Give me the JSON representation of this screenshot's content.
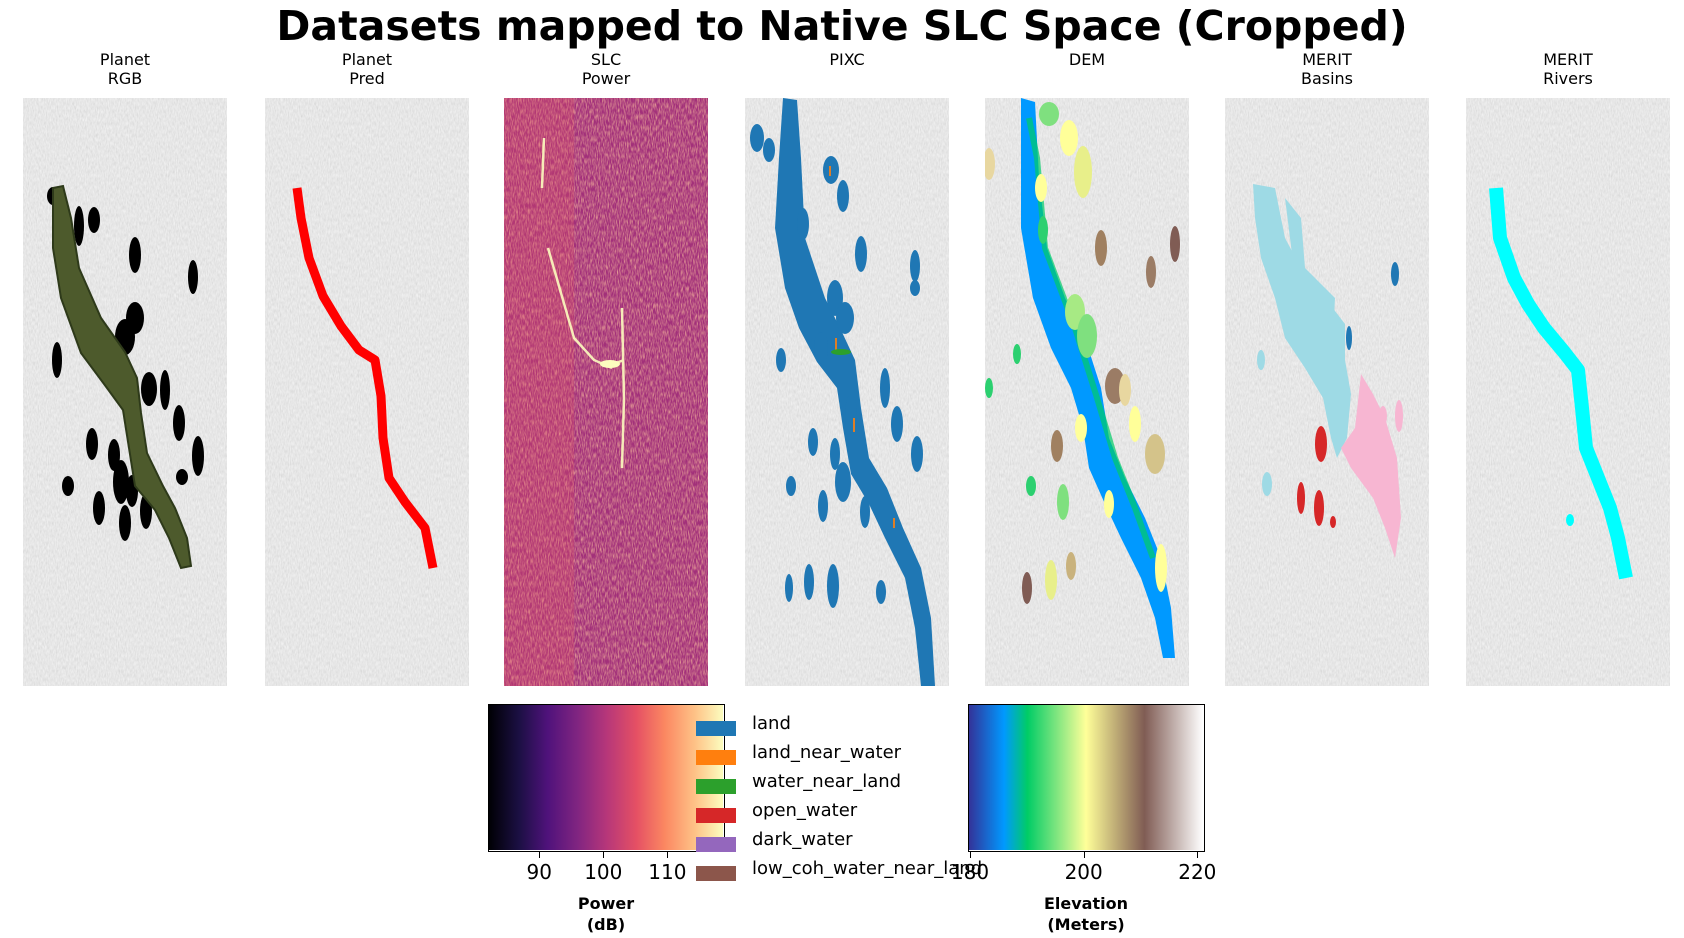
{
  "figure": {
    "title": "Datasets mapped to Native SLC Space (Cropped)"
  },
  "panels": [
    {
      "title": [
        "Planet",
        "RGB"
      ]
    },
    {
      "title": [
        "Planet",
        "Pred"
      ]
    },
    {
      "title": [
        "SLC",
        "Power"
      ]
    },
    {
      "title": [
        "",
        "PIXC"
      ]
    },
    {
      "title": [
        "",
        "DEM"
      ]
    },
    {
      "title": [
        "MERIT",
        "Basins"
      ]
    },
    {
      "title": [
        "MERIT",
        "Rivers"
      ]
    }
  ],
  "colors": {
    "background_sar": "#cfcfcf",
    "planet_river": "#4d5a2c",
    "planet_lakes": "#000000",
    "planet_pred": "#ff0000",
    "pixc_land": "#1f77b4",
    "pixc_land_near_water": "#ff7f0e",
    "pixc_water_near_land": "#2ca02c",
    "merit_basin_a": "#9edae5",
    "merit_basin_b": "#d62728",
    "merit_basin_c": "#f7b6d2",
    "merit_rivers": "#00ffff"
  },
  "chart_data": [
    {
      "type": "heatmap",
      "name": "SLC Power colorbar",
      "colormap": "magma",
      "ticks": [
        90,
        100,
        110
      ],
      "tick_labels": [
        "90",
        "100",
        "110"
      ],
      "range": [
        82,
        119
      ],
      "label": [
        "Power",
        "(dB)"
      ]
    },
    {
      "type": "heatmap",
      "name": "DEM colorbar",
      "colormap": "terrain",
      "ticks": [
        180,
        200,
        220
      ],
      "tick_labels": [
        "180",
        "200",
        "220"
      ],
      "range": [
        180,
        221
      ],
      "label": [
        "Elevation",
        "(Meters)"
      ]
    },
    {
      "type": "legend",
      "name": "PIXC classes",
      "items": [
        {
          "label": "land",
          "color": "#1f77b4"
        },
        {
          "label": "land_near_water",
          "color": "#ff7f0e"
        },
        {
          "label": "water_near_land",
          "color": "#2ca02c"
        },
        {
          "label": "open_water",
          "color": "#d62728"
        },
        {
          "label": "dark_water",
          "color": "#9467bd"
        },
        {
          "label": "low_coh_water_near_land",
          "color": "#8c564b"
        }
      ]
    }
  ]
}
